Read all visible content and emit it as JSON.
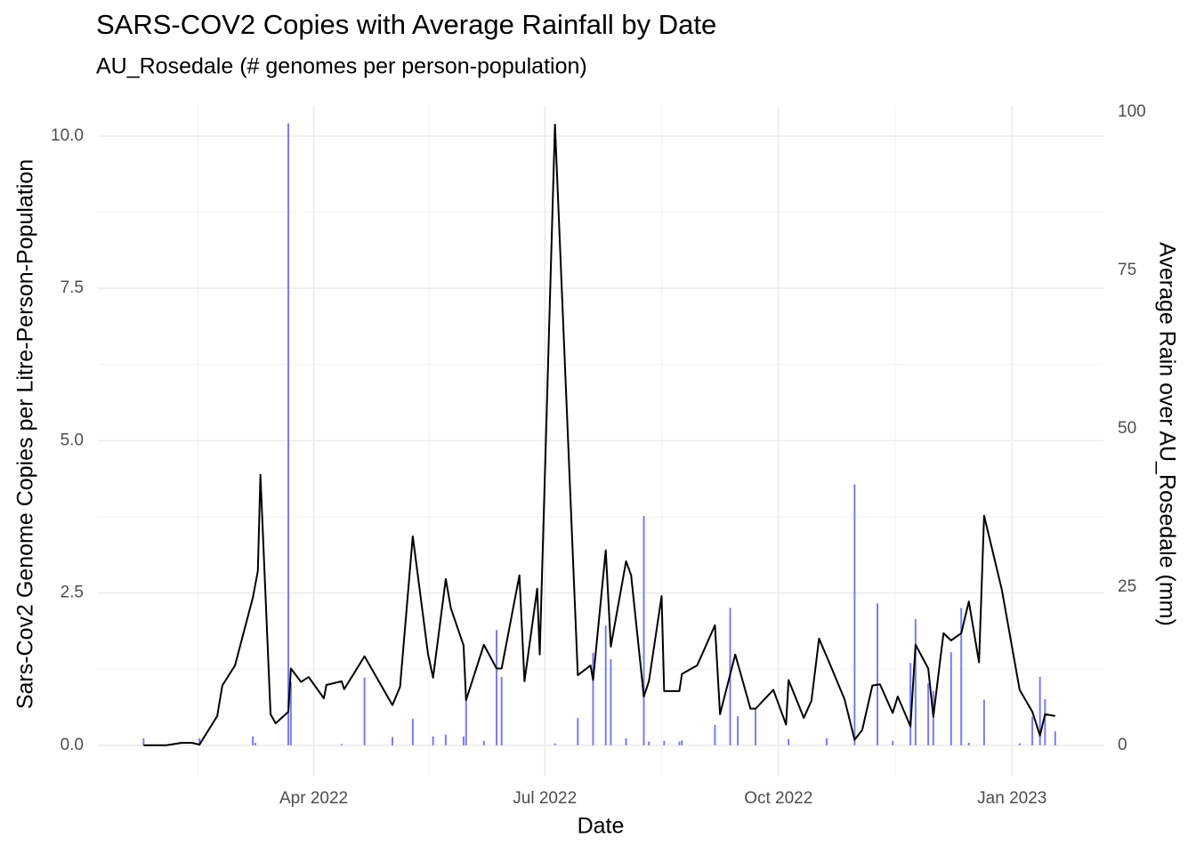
{
  "chart_data": {
    "type": "line",
    "title": "SARS-COV2 Copies with Average Rainfall by Date",
    "subtitle": "AU_Rosedale (# genomes per person-population)",
    "x_label": "Date",
    "y_label": "Sars-Cov2 Genome Copies per Litre-Person-Population",
    "y2_label": "Average Rain over AU_Rosedale (mm)",
    "xlim": [
      "2022-01-06",
      "2023-02-06"
    ],
    "xticks": [
      {
        "value": "2022-04-01",
        "label": "Apr 2022"
      },
      {
        "value": "2022-07-01",
        "label": "Jul 2022"
      },
      {
        "value": "2022-10-01",
        "label": "Oct 2022"
      },
      {
        "value": "2023-01-01",
        "label": "Jan 2023"
      }
    ],
    "ylim": [
      -0.5,
      10.5
    ],
    "yticks": [
      {
        "value": 0,
        "label": "0.0"
      },
      {
        "value": 2.5,
        "label": "2.5"
      },
      {
        "value": 5,
        "label": "5.0"
      },
      {
        "value": 7.5,
        "label": "7.5"
      },
      {
        "value": 10,
        "label": "10.0"
      }
    ],
    "y2lim": [
      -4.8,
      101
    ],
    "y2ticks": [
      0,
      25,
      50,
      75,
      100
    ],
    "grid": true,
    "series": [
      {
        "type": "bar",
        "axis": "y2",
        "color": "#7b7bef",
        "x": [
          "2022-01-24",
          "2022-02-15",
          "2022-03-08",
          "2022-03-09",
          "2022-03-22",
          "2022-03-23",
          "2022-04-12",
          "2022-04-21",
          "2022-05-02",
          "2022-05-10",
          "2022-05-18",
          "2022-05-23",
          "2022-05-30",
          "2022-05-31",
          "2022-06-07",
          "2022-06-12",
          "2022-06-14",
          "2022-07-05",
          "2022-07-14",
          "2022-07-20",
          "2022-07-25",
          "2022-07-27",
          "2022-08-02",
          "2022-08-09",
          "2022-08-11",
          "2022-08-17",
          "2022-08-23",
          "2022-08-24",
          "2022-09-06",
          "2022-09-12",
          "2022-09-15",
          "2022-09-22",
          "2022-10-05",
          "2022-10-20",
          "2022-10-31",
          "2022-11-09",
          "2022-11-15",
          "2022-11-22",
          "2022-11-24",
          "2022-11-29",
          "2022-12-01",
          "2022-12-08",
          "2022-12-12",
          "2022-12-15",
          "2022-12-21",
          "2023-01-04",
          "2023-01-09",
          "2023-01-12",
          "2023-01-14",
          "2023-01-18"
        ],
        "values": [
          1.1,
          1.1,
          1.4,
          0.4,
          98.2,
          10,
          0.2,
          10.7,
          1.3,
          4.2,
          1.4,
          1.7,
          1.4,
          7.4,
          0.7,
          18.2,
          10.8,
          0.3,
          4.3,
          14.6,
          18.9,
          13.6,
          1.1,
          36.2,
          0.6,
          0.7,
          0.6,
          0.8,
          3.2,
          21.7,
          4.6,
          5.9,
          1.0,
          1.1,
          41.2,
          22.4,
          0.7,
          13.0,
          19.9,
          9.8,
          8.6,
          14.7,
          21.7,
          0.4,
          7.2,
          0.3,
          4.5,
          10.8,
          7.3,
          2.2
        ]
      },
      {
        "type": "line",
        "color": "#000000",
        "x": [
          "2022-01-24",
          "2022-02-02",
          "2022-02-08",
          "2022-02-12",
          "2022-02-15",
          "2022-02-22",
          "2022-02-24",
          "2022-03-01",
          "2022-03-08",
          "2022-03-10",
          "2022-03-11",
          "2022-03-15",
          "2022-03-17",
          "2022-03-22",
          "2022-03-23",
          "2022-03-27",
          "2022-03-30",
          "2022-04-05",
          "2022-04-06",
          "2022-04-12",
          "2022-04-13",
          "2022-04-21",
          "2022-05-02",
          "2022-05-05",
          "2022-05-10",
          "2022-05-16",
          "2022-05-18",
          "2022-05-23",
          "2022-05-25",
          "2022-05-30",
          "2022-05-31",
          "2022-06-07",
          "2022-06-12",
          "2022-06-14",
          "2022-06-21",
          "2022-06-23",
          "2022-06-28",
          "2022-06-29",
          "2022-07-05",
          "2022-07-14",
          "2022-07-19",
          "2022-07-20",
          "2022-07-25",
          "2022-07-27",
          "2022-08-02",
          "2022-08-04",
          "2022-08-09",
          "2022-08-11",
          "2022-08-16",
          "2022-08-17",
          "2022-08-23",
          "2022-08-24",
          "2022-08-30",
          "2022-09-06",
          "2022-09-08",
          "2022-09-14",
          "2022-09-20",
          "2022-09-22",
          "2022-09-29",
          "2022-10-04",
          "2022-10-05",
          "2022-10-11",
          "2022-10-14",
          "2022-10-17",
          "2022-10-21",
          "2022-10-27",
          "2022-10-31",
          "2022-11-03",
          "2022-11-07",
          "2022-11-10",
          "2022-11-15",
          "2022-11-17",
          "2022-11-22",
          "2022-11-24",
          "2022-11-29",
          "2022-12-01",
          "2022-12-05",
          "2022-12-08",
          "2022-12-12",
          "2022-12-15",
          "2022-12-19",
          "2022-12-21",
          "2022-12-28",
          "2023-01-04",
          "2023-01-09",
          "2023-01-12",
          "2023-01-14",
          "2023-01-18"
        ],
        "values": [
          0,
          0,
          0.04,
          0.04,
          0.01,
          0.48,
          0.98,
          1.31,
          2.42,
          2.86,
          4.44,
          0.51,
          0.36,
          0.55,
          1.26,
          1.04,
          1.12,
          0.77,
          0.99,
          1.05,
          0.92,
          1.46,
          0.66,
          0.96,
          3.43,
          1.5,
          1.11,
          2.73,
          2.25,
          1.64,
          0.74,
          1.65,
          1.26,
          1.26,
          2.79,
          1.05,
          2.57,
          1.49,
          10.19,
          1.15,
          1.31,
          1.07,
          3.2,
          1.62,
          3.02,
          2.79,
          0.8,
          1.05,
          2.45,
          0.89,
          0.89,
          1.17,
          1.31,
          1.97,
          0.51,
          1.49,
          0.6,
          0.6,
          0.91,
          0.34,
          1.07,
          0.45,
          0.73,
          1.75,
          1.36,
          0.76,
          0.09,
          0.25,
          0.98,
          1.0,
          0.53,
          0.8,
          0.31,
          1.65,
          1.26,
          0.47,
          1.84,
          1.72,
          1.84,
          2.36,
          1.36,
          3.77,
          2.55,
          0.91,
          0.55,
          0.16,
          0.51,
          0.48
        ]
      }
    ]
  }
}
